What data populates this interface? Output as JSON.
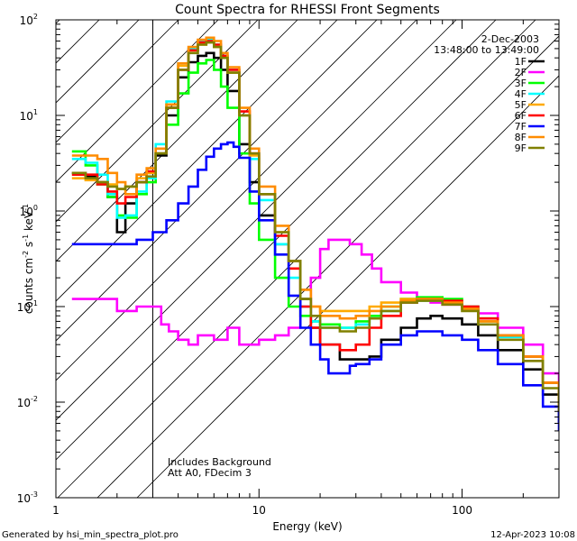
{
  "chart_data": {
    "type": "line",
    "title": "Count Spectra for RHESSI Front Segments",
    "xlabel": "Energy (keV)",
    "ylabel_parts": [
      "counts cm",
      "-2",
      " s",
      "-1",
      " keV",
      "-1"
    ],
    "xscale": "log",
    "yscale": "log",
    "xlim": [
      1,
      300
    ],
    "ylim": [
      0.001,
      100
    ],
    "x_tick_labels": [
      "1",
      "10",
      "100"
    ],
    "y_tick_labels": [
      {
        "base": "10",
        "exp": "-3"
      },
      {
        "base": "10",
        "exp": "-2"
      },
      {
        "base": "10",
        "exp": "-1"
      },
      {
        "base": "10",
        "exp": "0"
      },
      {
        "base": "10",
        "exp": "1"
      },
      {
        "base": "10",
        "exp": "2"
      }
    ],
    "date": "2-Dec-2003",
    "time_range": "13:48:00 to 13:49:00",
    "notes": [
      "Includes Background",
      "Att A0, FDecim 3"
    ],
    "hatched_below_kev": 3,
    "series": [
      {
        "name": "1F",
        "color": "#000000",
        "x": [
          1.2,
          1.4,
          1.6,
          1.8,
          2.0,
          2.2,
          2.5,
          2.8,
          3.1,
          3.5,
          4.0,
          4.5,
          5.0,
          5.5,
          6.0,
          6.5,
          7.0,
          8.0,
          9.0,
          10.0,
          12.0,
          14.0,
          16.0,
          18.0,
          20.0,
          25.0,
          30.0,
          35.0,
          40.0,
          50.0,
          60.0,
          70.0,
          80.0,
          100.0,
          120.0,
          150.0,
          200.0,
          250.0,
          300.0
        ],
        "y": [
          2.5,
          2.3,
          2.0,
          1.4,
          0.6,
          1.2,
          2.0,
          2.5,
          3.8,
          10.0,
          25.0,
          36.0,
          42.0,
          45.0,
          40.0,
          30.0,
          18.0,
          5.0,
          2.0,
          0.9,
          0.45,
          0.3,
          0.12,
          0.06,
          0.04,
          0.028,
          0.028,
          0.03,
          0.045,
          0.06,
          0.075,
          0.08,
          0.075,
          0.065,
          0.05,
          0.035,
          0.022,
          0.012,
          0.006
        ]
      },
      {
        "name": "2F",
        "color": "#ff00ff",
        "x": [
          1.2,
          1.5,
          2.0,
          2.5,
          3.0,
          3.3,
          3.6,
          4.0,
          4.5,
          5.0,
          6.0,
          7.0,
          8.0,
          9.0,
          10.0,
          12.0,
          14.0,
          16.0,
          18.0,
          20.0,
          22.0,
          25.0,
          28.0,
          32.0,
          36.0,
          40.0,
          50.0,
          60.0,
          70.0,
          80.0,
          100.0,
          120.0,
          150.0,
          200.0,
          250.0,
          300.0
        ],
        "y": [
          0.12,
          0.12,
          0.09,
          0.1,
          0.1,
          0.065,
          0.055,
          0.045,
          0.04,
          0.05,
          0.045,
          0.06,
          0.04,
          0.04,
          0.045,
          0.05,
          0.06,
          0.1,
          0.2,
          0.4,
          0.5,
          0.5,
          0.45,
          0.35,
          0.25,
          0.18,
          0.14,
          0.12,
          0.11,
          0.105,
          0.1,
          0.085,
          0.06,
          0.04,
          0.02,
          0.008
        ]
      },
      {
        "name": "3F",
        "color": "#00ff00",
        "x": [
          1.2,
          1.4,
          1.6,
          1.8,
          2.0,
          2.2,
          2.5,
          2.8,
          3.1,
          3.5,
          4.0,
          4.5,
          5.0,
          5.5,
          6.0,
          6.5,
          7.0,
          8.0,
          9.0,
          10.0,
          12.0,
          14.0,
          16.0,
          18.0,
          20.0,
          25.0,
          30.0,
          35.0,
          40.0,
          50.0,
          60.0,
          70.0,
          80.0,
          100.0,
          120.0,
          150.0,
          200.0,
          250.0,
          300.0
        ],
        "y": [
          4.2,
          3.0,
          1.9,
          1.4,
          0.9,
          0.85,
          1.5,
          2.0,
          4.0,
          8.0,
          17.0,
          28.0,
          35.0,
          38.0,
          30.0,
          20.0,
          12.0,
          4.0,
          1.2,
          0.5,
          0.2,
          0.1,
          0.08,
          0.07,
          0.065,
          0.06,
          0.07,
          0.08,
          0.1,
          0.12,
          0.125,
          0.125,
          0.12,
          0.1,
          0.075,
          0.05,
          0.03,
          0.016,
          0.008
        ]
      },
      {
        "name": "4F",
        "color": "#00ffff",
        "x": [
          1.2,
          1.4,
          1.6,
          1.8,
          2.0,
          2.2,
          2.5,
          2.8,
          3.1,
          3.5,
          4.0,
          4.5,
          5.0,
          5.5,
          6.0,
          6.5,
          7.0,
          8.0,
          9.0,
          10.0,
          12.0,
          14.0,
          16.0,
          18.0,
          20.0,
          25.0,
          30.0,
          35.0,
          40.0,
          50.0,
          60.0,
          70.0,
          80.0,
          100.0,
          120.0,
          150.0,
          200.0,
          250.0,
          300.0
        ],
        "y": [
          3.5,
          3.2,
          2.4,
          1.5,
          0.85,
          0.9,
          1.6,
          2.2,
          5.0,
          14.0,
          35.0,
          50.0,
          60.0,
          62.0,
          55.0,
          42.0,
          30.0,
          10.0,
          3.5,
          1.3,
          0.45,
          0.2,
          0.1,
          0.07,
          0.06,
          0.06,
          0.065,
          0.075,
          0.09,
          0.11,
          0.115,
          0.115,
          0.11,
          0.095,
          0.07,
          0.048,
          0.03,
          0.016,
          0.008
        ]
      },
      {
        "name": "5F",
        "color": "#ffaa00",
        "x": [
          1.2,
          1.4,
          1.6,
          1.8,
          2.0,
          2.2,
          2.5,
          2.8,
          3.1,
          3.5,
          4.0,
          4.5,
          5.0,
          5.5,
          6.0,
          6.5,
          7.0,
          8.0,
          9.0,
          10.0,
          12.0,
          14.0,
          16.0,
          18.0,
          20.0,
          25.0,
          30.0,
          35.0,
          40.0,
          50.0,
          60.0,
          70.0,
          80.0,
          100.0,
          120.0,
          150.0,
          200.0,
          250.0,
          300.0
        ],
        "y": [
          2.2,
          2.1,
          2.0,
          1.9,
          1.7,
          1.8,
          2.2,
          2.5,
          4.5,
          13.0,
          33.0,
          48.0,
          55.0,
          58.0,
          52.0,
          40.0,
          28.0,
          10.0,
          3.8,
          1.5,
          0.6,
          0.3,
          0.15,
          0.1,
          0.09,
          0.09,
          0.09,
          0.1,
          0.11,
          0.12,
          0.12,
          0.12,
          0.11,
          0.095,
          0.07,
          0.05,
          0.03,
          0.016,
          0.009
        ]
      },
      {
        "name": "6F",
        "color": "#ff0000",
        "x": [
          1.2,
          1.4,
          1.6,
          1.8,
          2.0,
          2.2,
          2.5,
          2.8,
          3.1,
          3.5,
          4.0,
          4.5,
          5.0,
          5.5,
          6.0,
          6.5,
          7.0,
          8.0,
          9.0,
          10.0,
          12.0,
          14.0,
          16.0,
          18.0,
          20.0,
          25.0,
          30.0,
          35.0,
          40.0,
          50.0,
          60.0,
          70.0,
          80.0,
          100.0,
          120.0,
          150.0,
          200.0,
          250.0,
          300.0
        ],
        "y": [
          2.4,
          2.4,
          1.9,
          1.6,
          1.2,
          1.4,
          2.0,
          2.6,
          4.0,
          12.0,
          30.0,
          48.0,
          58.0,
          60.0,
          55.0,
          42.0,
          30.0,
          11.0,
          4.0,
          1.5,
          0.55,
          0.25,
          0.1,
          0.06,
          0.04,
          0.035,
          0.04,
          0.06,
          0.08,
          0.11,
          0.12,
          0.12,
          0.115,
          0.1,
          0.075,
          0.05,
          0.03,
          0.016,
          0.008
        ]
      },
      {
        "name": "7F",
        "color": "#0000ff",
        "x": [
          1.2,
          1.5,
          2.0,
          2.5,
          3.0,
          3.5,
          4.0,
          4.5,
          5.0,
          5.5,
          6.0,
          6.5,
          7.0,
          7.5,
          8.0,
          9.0,
          10.0,
          12.0,
          14.0,
          16.0,
          18.0,
          20.0,
          22.0,
          25.0,
          28.0,
          30.0,
          35.0,
          40.0,
          50.0,
          60.0,
          70.0,
          80.0,
          100.0,
          120.0,
          150.0,
          200.0,
          250.0,
          300.0
        ],
        "y": [
          0.45,
          0.45,
          0.45,
          0.5,
          0.6,
          0.8,
          1.2,
          1.8,
          2.7,
          3.7,
          4.5,
          5.0,
          5.2,
          4.7,
          3.6,
          1.6,
          0.8,
          0.35,
          0.13,
          0.06,
          0.04,
          0.028,
          0.02,
          0.02,
          0.024,
          0.025,
          0.028,
          0.04,
          0.05,
          0.055,
          0.055,
          0.05,
          0.045,
          0.035,
          0.025,
          0.015,
          0.009,
          0.005
        ]
      },
      {
        "name": "8F",
        "color": "#ff8c00",
        "x": [
          1.2,
          1.4,
          1.6,
          1.8,
          2.0,
          2.2,
          2.5,
          2.8,
          3.1,
          3.5,
          4.0,
          4.5,
          5.0,
          5.5,
          6.0,
          6.5,
          7.0,
          8.0,
          9.0,
          10.0,
          12.0,
          14.0,
          16.0,
          18.0,
          20.0,
          25.0,
          30.0,
          35.0,
          40.0,
          50.0,
          60.0,
          70.0,
          80.0,
          100.0,
          120.0,
          150.0,
          200.0,
          250.0,
          300.0
        ],
        "y": [
          3.8,
          3.8,
          3.5,
          2.5,
          2.0,
          1.5,
          2.4,
          2.8,
          4.5,
          13.0,
          35.0,
          52.0,
          62.0,
          65.0,
          60.0,
          45.0,
          32.0,
          12.0,
          4.5,
          1.8,
          0.7,
          0.3,
          0.15,
          0.1,
          0.08,
          0.075,
          0.08,
          0.09,
          0.1,
          0.115,
          0.12,
          0.12,
          0.11,
          0.095,
          0.07,
          0.05,
          0.03,
          0.016,
          0.009
        ]
      },
      {
        "name": "9F",
        "color": "#808000",
        "x": [
          1.2,
          1.4,
          1.6,
          1.8,
          2.0,
          2.2,
          2.5,
          2.8,
          3.1,
          3.5,
          4.0,
          4.5,
          5.0,
          5.5,
          6.0,
          6.5,
          7.0,
          8.0,
          9.0,
          10.0,
          12.0,
          14.0,
          16.0,
          18.0,
          20.0,
          25.0,
          30.0,
          35.0,
          40.0,
          50.0,
          60.0,
          70.0,
          80.0,
          100.0,
          120.0,
          150.0,
          200.0,
          250.0,
          300.0
        ],
        "y": [
          2.5,
          2.2,
          2.0,
          1.8,
          1.7,
          1.8,
          2.0,
          2.3,
          4.0,
          12.0,
          30.0,
          45.0,
          55.0,
          58.0,
          52.0,
          40.0,
          28.0,
          10.0,
          4.0,
          1.5,
          0.6,
          0.3,
          0.12,
          0.08,
          0.06,
          0.055,
          0.06,
          0.075,
          0.09,
          0.11,
          0.115,
          0.115,
          0.105,
          0.09,
          0.065,
          0.045,
          0.027,
          0.014,
          0.008
        ]
      }
    ]
  },
  "footer": {
    "generated_by": "Generated by hsi_min_spectra_plot.pro",
    "timestamp": "12-Apr-2023 10:08"
  }
}
